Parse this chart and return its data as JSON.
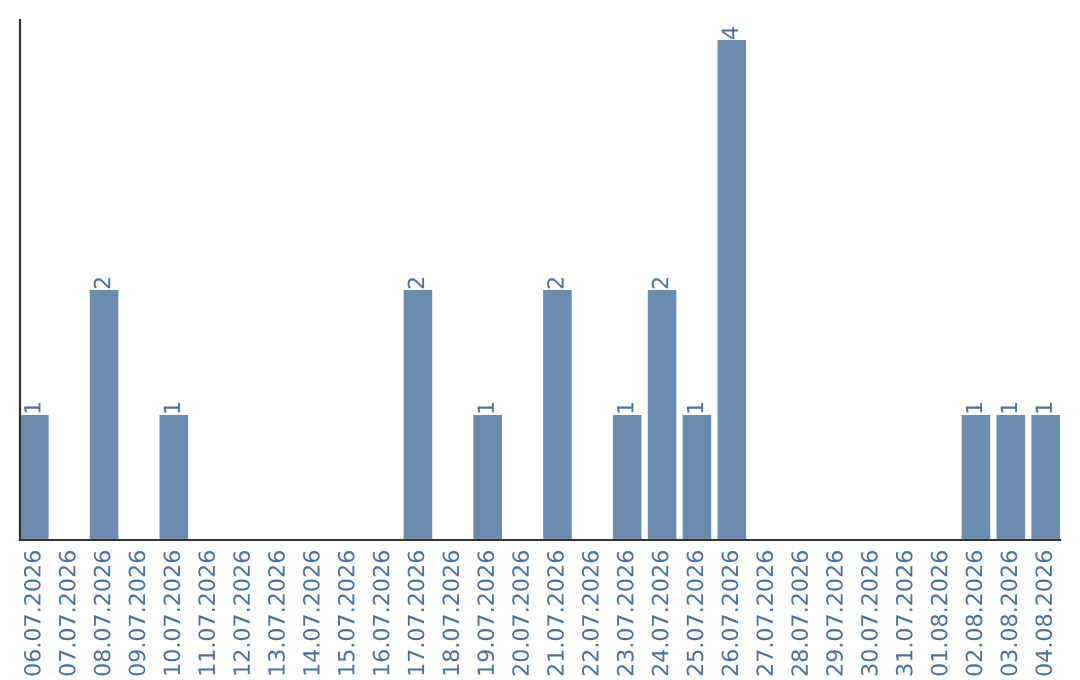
{
  "chart_data": {
    "type": "bar",
    "categories": [
      "06.07.2026",
      "07.07.2026",
      "08.07.2026",
      "09.07.2026",
      "10.07.2026",
      "11.07.2026",
      "12.07.2026",
      "13.07.2026",
      "14.07.2026",
      "15.07.2026",
      "16.07.2026",
      "17.07.2026",
      "18.07.2026",
      "19.07.2026",
      "20.07.2026",
      "21.07.2026",
      "22.07.2026",
      "23.07.2026",
      "24.07.2026",
      "25.07.2026",
      "26.07.2026",
      "27.07.2026",
      "28.07.2026",
      "29.07.2026",
      "30.07.2026",
      "31.07.2026",
      "01.08.2026",
      "02.08.2026",
      "03.08.2026",
      "04.08.2026"
    ],
    "values": [
      1,
      0,
      2,
      0,
      1,
      0,
      0,
      0,
      0,
      0,
      0,
      2,
      0,
      1,
      0,
      2,
      0,
      1,
      2,
      1,
      4,
      0,
      0,
      0,
      0,
      0,
      0,
      1,
      1,
      1
    ],
    "value_labels": [
      "1",
      null,
      "2",
      null,
      "1",
      null,
      null,
      null,
      null,
      null,
      null,
      "2",
      null,
      "1",
      null,
      "2",
      null,
      "1",
      "2",
      "1",
      "4",
      null,
      null,
      null,
      null,
      null,
      null,
      "1",
      "1",
      "1"
    ],
    "color": "#6b8cad",
    "tick_labels": "x",
    "grid": false
  }
}
